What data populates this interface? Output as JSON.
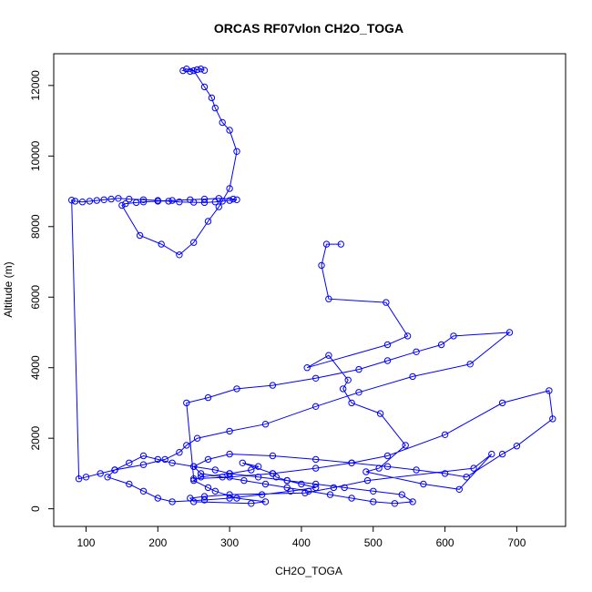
{
  "chart_data": {
    "type": "scatter",
    "title": "ORCAS RF07vlon CH2O_TOGA",
    "xlabel": "CH2O_TOGA",
    "ylabel": "Altitude (m)",
    "xlim": [
      55,
      768
    ],
    "ylim": [
      -500,
      12900
    ],
    "xticks": [
      100,
      200,
      300,
      400,
      500,
      600,
      700
    ],
    "yticks": [
      0,
      2000,
      4000,
      6000,
      8000,
      10000,
      12000
    ],
    "grid": false,
    "line_color": "#0000ff",
    "marker": "open-circle",
    "series": [
      {
        "x": [
          455,
          435,
          428,
          438,
          518,
          548,
          520,
          408,
          438,
          465,
          458,
          470,
          510,
          545,
          508,
          490,
          570,
          620,
          665,
          640,
          492,
          445,
          405,
          300,
          265,
          245,
          250,
          330,
          350,
          310,
          280,
          270,
          250,
          260,
          300,
          330,
          340,
          318,
          360,
          365,
          380,
          400,
          420,
          385,
          345,
          300,
          265,
          220,
          200,
          180,
          160,
          130,
          140,
          160,
          180,
          200,
          220,
          250,
          280,
          300,
          340,
          380,
          420,
          460,
          500,
          540,
          555,
          530,
          500,
          470,
          440,
          410,
          380,
          350,
          320,
          290,
          260,
          250,
          270,
          300,
          360,
          420,
          470,
          520,
          560,
          600,
          630,
          680,
          700,
          750,
          745,
          680,
          600,
          520,
          470,
          420,
          360,
          300,
          250,
          240,
          270,
          310,
          360,
          420,
          480,
          520,
          560,
          595,
          612,
          690,
          635,
          555,
          480,
          420,
          350,
          300,
          255,
          240,
          230,
          210,
          180,
          140,
          120,
          100,
          90,
          80,
          85,
          95,
          105,
          115,
          125,
          135,
          145,
          160,
          180,
          200,
          215,
          230,
          250,
          265,
          280,
          290,
          300,
          310,
          305,
          285,
          265,
          245,
          220,
          200,
          180,
          170,
          155,
          150,
          175,
          205,
          230,
          250,
          270,
          285,
          300,
          310,
          300,
          290,
          280,
          275,
          265,
          250,
          240,
          235,
          245,
          255,
          260,
          265
        ],
        "y": [
          7500,
          7500,
          6900,
          5950,
          5850,
          4900,
          4650,
          4000,
          4350,
          3650,
          3400,
          3000,
          2700,
          1800,
          1150,
          1050,
          700,
          550,
          1550,
          1150,
          800,
          600,
          450,
          400,
          350,
          300,
          200,
          150,
          200,
          300,
          500,
          600,
          800,
          900,
          1000,
          1100,
          1200,
          1300,
          1000,
          900,
          800,
          700,
          600,
          500,
          400,
          300,
          250,
          200,
          300,
          500,
          700,
          900,
          1100,
          1300,
          1500,
          1400,
          1300,
          1200,
          1100,
          1000,
          900,
          800,
          700,
          600,
          500,
          400,
          200,
          150,
          200,
          300,
          400,
          500,
          600,
          700,
          800,
          900,
          1000,
          1200,
          1400,
          1550,
          1500,
          1400,
          1300,
          1200,
          1100,
          1000,
          900,
          1550,
          1780,
          2550,
          3350,
          3000,
          2100,
          1500,
          1300,
          1150,
          1000,
          900,
          850,
          3000,
          3150,
          3400,
          3500,
          3700,
          3950,
          4200,
          4450,
          4650,
          4900,
          5000,
          4100,
          3750,
          3300,
          2900,
          2400,
          2200,
          2000,
          1800,
          1600,
          1400,
          1250,
          1100,
          1000,
          900,
          850,
          8750,
          8720,
          8700,
          8720,
          8740,
          8760,
          8780,
          8800,
          8780,
          8760,
          8740,
          8720,
          8700,
          8690,
          8680,
          8700,
          8720,
          8740,
          8760,
          8780,
          8800,
          8780,
          8760,
          8740,
          8720,
          8700,
          8680,
          8650,
          8600,
          7750,
          7500,
          7200,
          7550,
          8150,
          8560,
          9080,
          10130,
          10730,
          10950,
          11360,
          11650,
          11960,
          12420,
          12470,
          12420,
          12400,
          12450,
          12470,
          12430
        ]
      }
    ]
  }
}
